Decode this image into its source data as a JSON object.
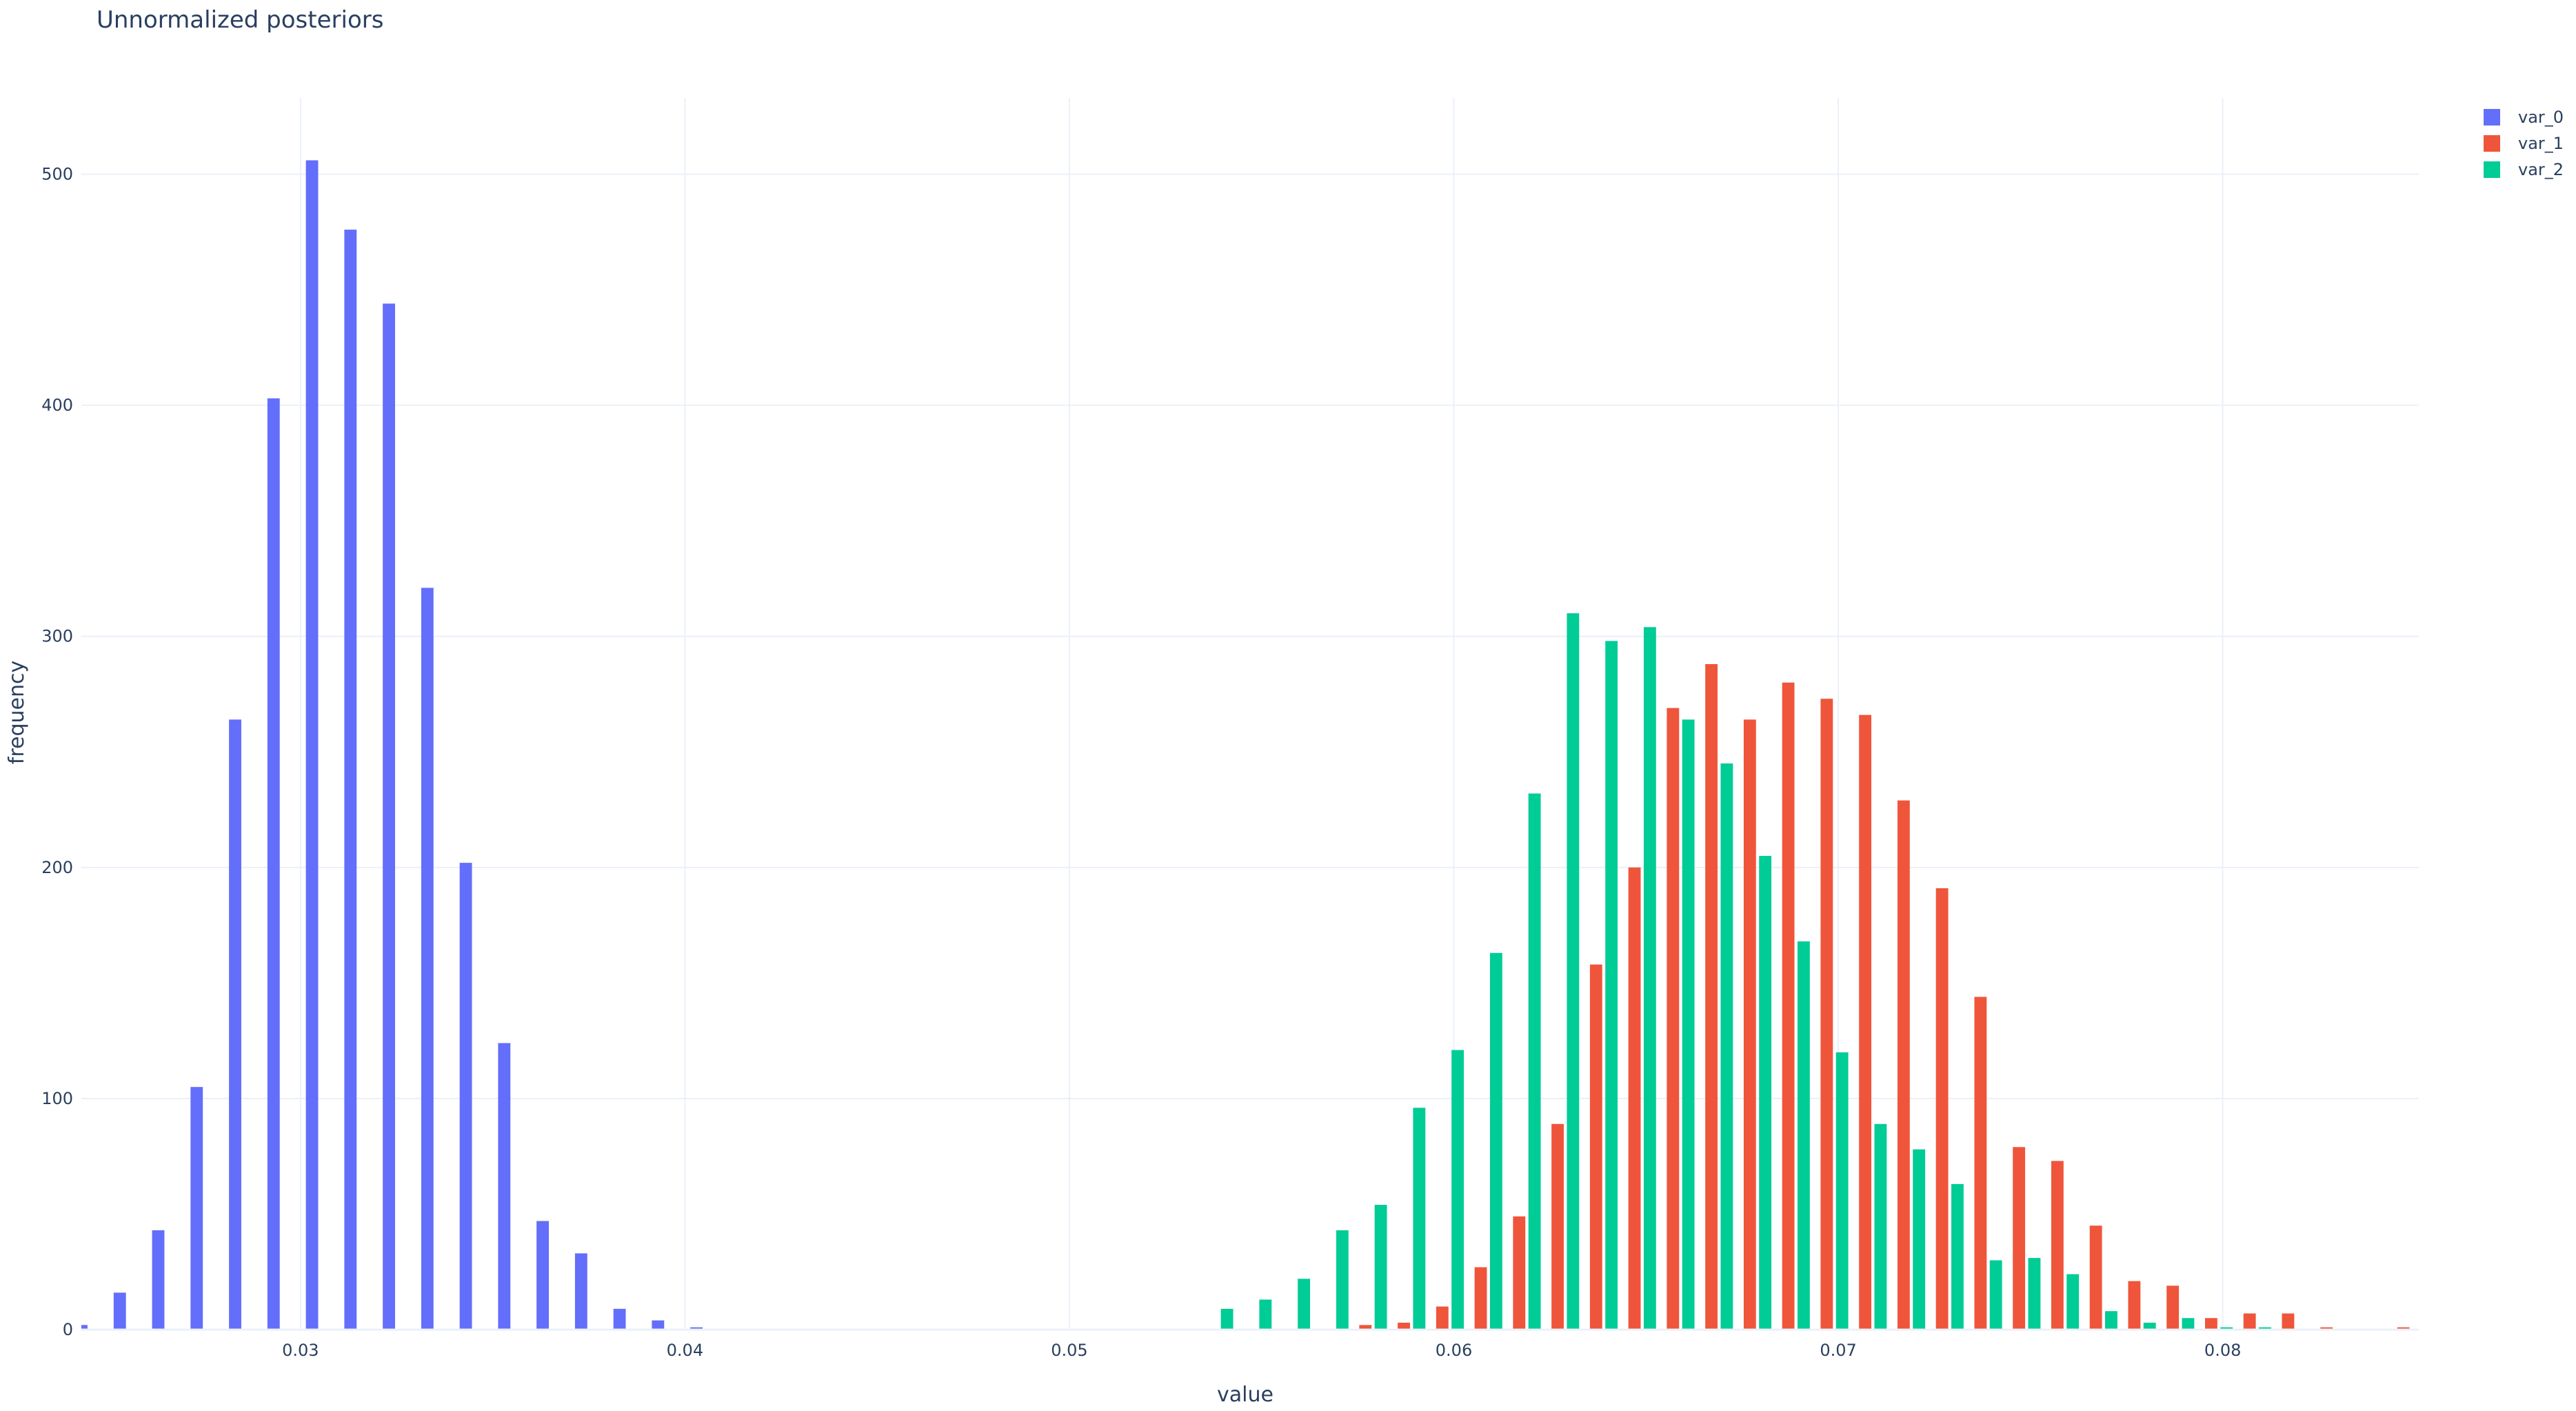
{
  "chart_data": {
    "type": "bar",
    "title": "Unnormalized posteriors",
    "xlabel": "value",
    "ylabel": "frequency",
    "xlim": [
      0.0243,
      0.0851
    ],
    "ylim": [
      0,
      533
    ],
    "x_ticks": [
      {
        "value": 0.03,
        "label": "0.03"
      },
      {
        "value": 0.04,
        "label": "0.04"
      },
      {
        "value": 0.05,
        "label": "0.05"
      },
      {
        "value": 0.06,
        "label": "0.06"
      },
      {
        "value": 0.07,
        "label": "0.07"
      },
      {
        "value": 0.08,
        "label": "0.08"
      }
    ],
    "y_ticks": [
      {
        "value": 0,
        "label": "0"
      },
      {
        "value": 100,
        "label": "100"
      },
      {
        "value": 200,
        "label": "200"
      },
      {
        "value": 300,
        "label": "300"
      },
      {
        "value": 400,
        "label": "400"
      },
      {
        "value": 500,
        "label": "500"
      }
    ],
    "grid": true,
    "legend_position": "top-right",
    "series": [
      {
        "name": "var_0",
        "color": "#636efa",
        "x": [
          0.0243,
          0.0253,
          0.0263,
          0.0273,
          0.0283,
          0.0293,
          0.0303,
          0.0313,
          0.0323,
          0.0333,
          0.0343,
          0.0353,
          0.0363,
          0.0373,
          0.0383,
          0.0393,
          0.0403
        ],
        "values": [
          2,
          16,
          43,
          105,
          264,
          403,
          506,
          476,
          444,
          321,
          202,
          124,
          47,
          33,
          9,
          4,
          1
        ]
      },
      {
        "name": "var_1",
        "color": "#ef553b",
        "x": [
          0.0577,
          0.0587,
          0.0597,
          0.0607,
          0.0617,
          0.0627,
          0.0637,
          0.0647,
          0.0657,
          0.0667,
          0.0677,
          0.0687,
          0.0697,
          0.0707,
          0.0717,
          0.0727,
          0.0737,
          0.0747,
          0.0757,
          0.0767,
          0.0777,
          0.0787,
          0.0797,
          0.0807,
          0.0817,
          0.0827,
          0.0847
        ],
        "values": [
          2,
          3,
          10,
          27,
          49,
          89,
          158,
          200,
          269,
          288,
          264,
          280,
          273,
          266,
          229,
          191,
          144,
          79,
          73,
          45,
          21,
          19,
          5,
          7,
          7,
          1,
          1
        ]
      },
      {
        "name": "var_2",
        "color": "#00cc96",
        "x": [
          0.0541,
          0.0551,
          0.0561,
          0.0571,
          0.0581,
          0.0591,
          0.0601,
          0.0611,
          0.0621,
          0.0631,
          0.0641,
          0.0651,
          0.0661,
          0.0671,
          0.0681,
          0.0691,
          0.0701,
          0.0711,
          0.0721,
          0.0731,
          0.0741,
          0.0751,
          0.0761,
          0.0771,
          0.0781,
          0.0791,
          0.0801,
          0.0811
        ],
        "values": [
          9,
          13,
          22,
          43,
          54,
          96,
          121,
          163,
          232,
          310,
          298,
          304,
          264,
          245,
          205,
          168,
          120,
          89,
          78,
          63,
          30,
          31,
          24,
          8,
          3,
          5,
          1,
          1
        ]
      }
    ]
  }
}
